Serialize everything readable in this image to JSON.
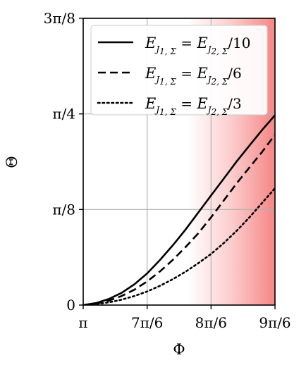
{
  "chart_data": {
    "type": "line",
    "xlabel": "Φ",
    "ylabel": "Θ",
    "xlim": [
      3.14159,
      4.71239
    ],
    "ylim": [
      0,
      1.1781
    ],
    "xticks": [
      {
        "value": 3.14159,
        "label": "π"
      },
      {
        "value": 3.66519,
        "label": "7π/6"
      },
      {
        "value": 4.18879,
        "label": "8π/6"
      },
      {
        "value": 4.71239,
        "label": "9π/6"
      }
    ],
    "yticks": [
      {
        "value": 0,
        "label": "0"
      },
      {
        "value": 0.3927,
        "label": "π/8"
      },
      {
        "value": 0.7854,
        "label": "π/4"
      },
      {
        "value": 1.1781,
        "label": "3π/8"
      }
    ],
    "grid": true,
    "legend_position": "top-right",
    "shaded_region": {
      "x_from": 4.0,
      "x_to": 4.71239,
      "color": "#f47070",
      "gradient": "transparent-to-red"
    },
    "series": [
      {
        "name_parts": {
          "main": "E",
          "sub_left": "J",
          "sub_left_sub": "1, Σ",
          "sub_right": "J",
          "sub_right_sub": "2, Σ",
          "divisor": "/10"
        },
        "style": "solid",
        "x": [
          3.14159,
          3.2463,
          3.351,
          3.4558,
          3.5605,
          3.6652,
          3.7699,
          3.8746,
          3.9794,
          4.0841,
          4.1888,
          4.2935,
          4.3982,
          4.5029,
          4.6077,
          4.7124
        ],
        "y": [
          0.0,
          0.008,
          0.025,
          0.05,
          0.085,
          0.13,
          0.185,
          0.245,
          0.31,
          0.38,
          0.45,
          0.52,
          0.59,
          0.655,
          0.72,
          0.78
        ]
      },
      {
        "name_parts": {
          "main": "E",
          "sub_left": "J",
          "sub_left_sub": "1, Σ",
          "sub_right": "J",
          "sub_right_sub": "2, Σ",
          "divisor": "/6"
        },
        "style": "dashed",
        "x": [
          3.14159,
          3.2463,
          3.351,
          3.4558,
          3.5605,
          3.6652,
          3.7699,
          3.8746,
          3.9794,
          4.0841,
          4.1888,
          4.2935,
          4.3982,
          4.5029,
          4.6077,
          4.7124
        ],
        "y": [
          0.0,
          0.006,
          0.018,
          0.037,
          0.063,
          0.097,
          0.138,
          0.185,
          0.238,
          0.295,
          0.36,
          0.43,
          0.5,
          0.565,
          0.63,
          0.7
        ]
      },
      {
        "name_parts": {
          "main": "E",
          "sub_left": "J",
          "sub_left_sub": "1, Σ",
          "sub_right": "J",
          "sub_right_sub": "2, Σ",
          "divisor": "/3"
        },
        "style": "dotted",
        "x": [
          3.14159,
          3.2463,
          3.351,
          3.4558,
          3.5605,
          3.6652,
          3.7699,
          3.8746,
          3.9794,
          4.0841,
          4.1888,
          4.2935,
          4.3982,
          4.5029,
          4.6077,
          4.7124
        ],
        "y": [
          0.0,
          0.004,
          0.011,
          0.022,
          0.037,
          0.056,
          0.079,
          0.106,
          0.137,
          0.172,
          0.21,
          0.255,
          0.305,
          0.36,
          0.42,
          0.48
        ]
      }
    ]
  }
}
